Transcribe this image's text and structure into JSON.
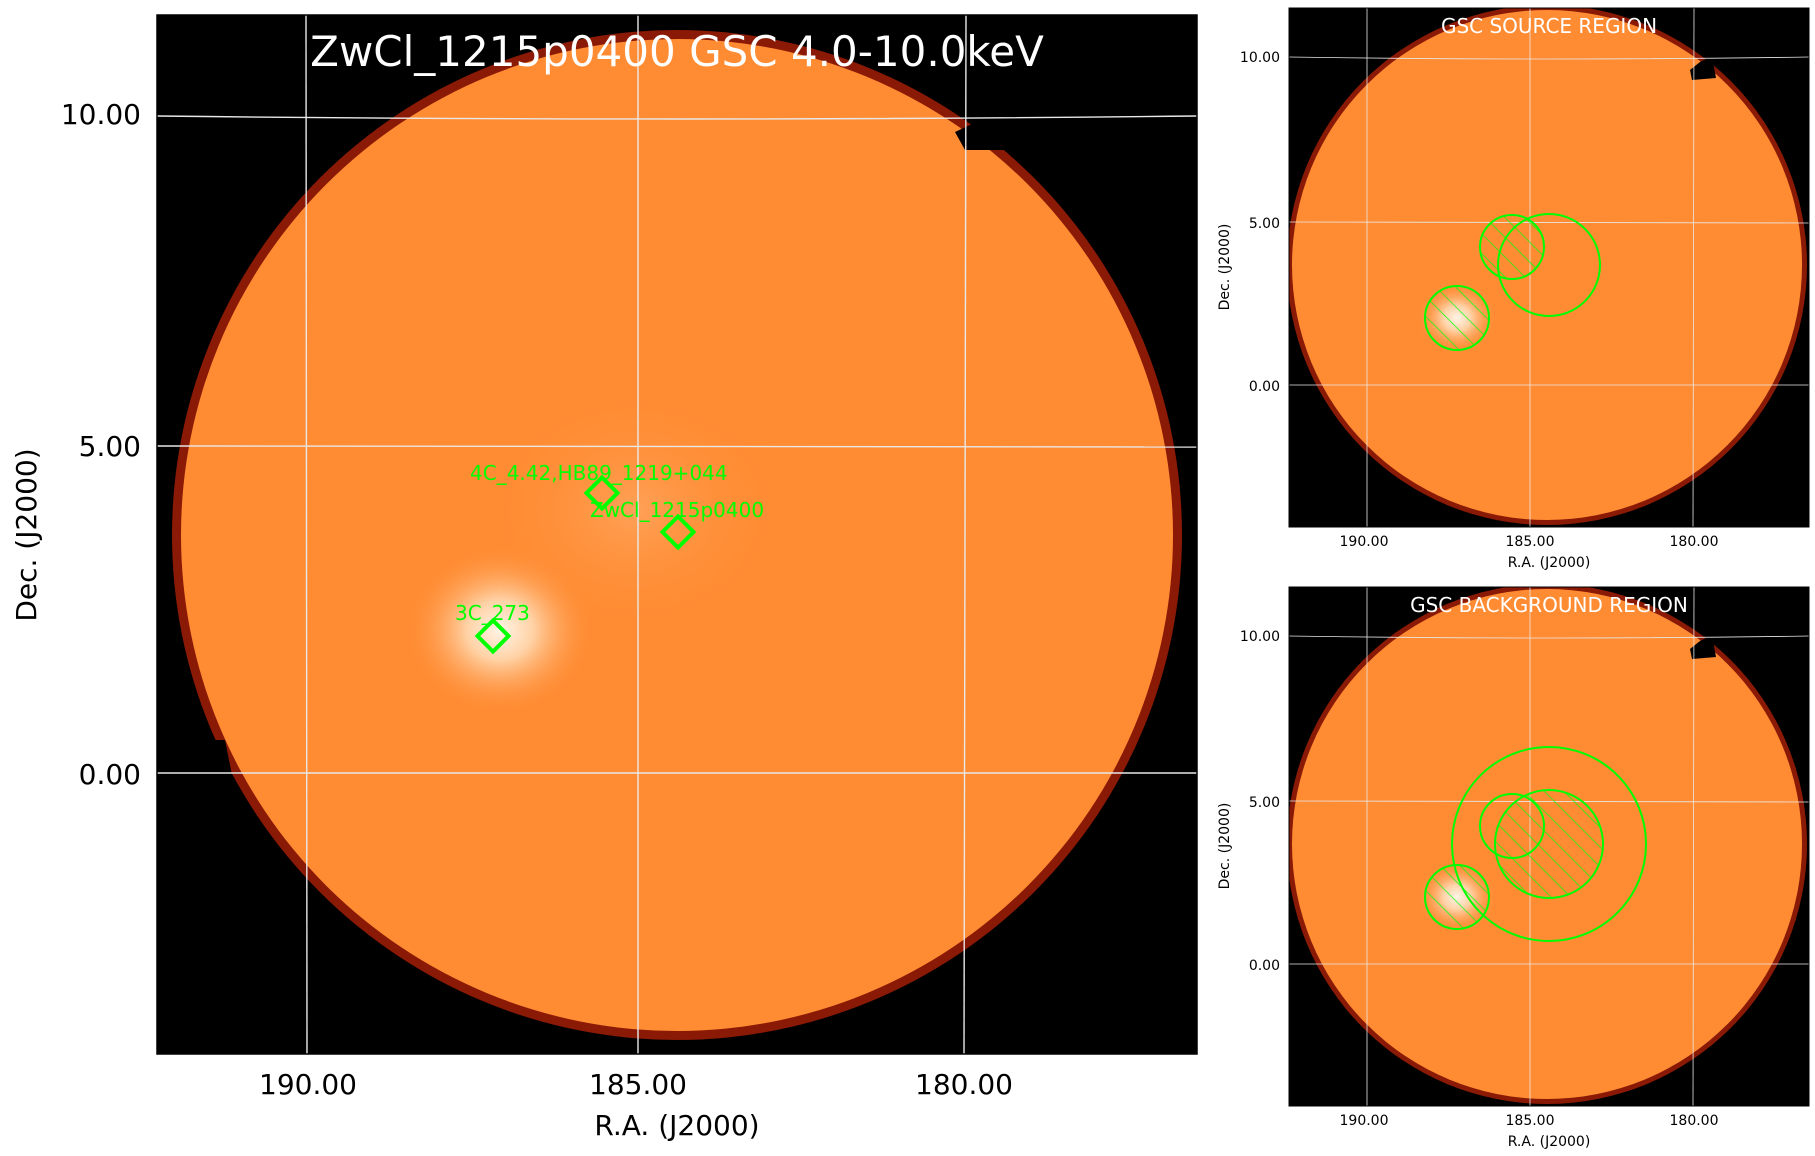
{
  "main_panel": {
    "title": "ZwCl_1215p0400 GSC 4.0-10.0keV",
    "xlabel": "R.A. (J2000)",
    "ylabel": "Dec. (J2000)",
    "x_ticks": [
      "190.00",
      "185.00",
      "180.00"
    ],
    "y_ticks": [
      "10.00",
      "5.00",
      "0.00"
    ],
    "sources": [
      {
        "name": "4C_4.42,HB89_1219+044"
      },
      {
        "name": "ZwCl_1215p0400"
      },
      {
        "name": "3C_273"
      }
    ]
  },
  "source_panel": {
    "title": "GSC SOURCE REGION",
    "xlabel": "R.A. (J2000)",
    "ylabel": "Dec. (J2000)",
    "x_ticks": [
      "190.00",
      "185.00",
      "180.00"
    ],
    "y_ticks": [
      "10.00",
      "5.00",
      "0.00"
    ]
  },
  "background_panel": {
    "title": "GSC BACKGROUND REGION",
    "xlabel": "R.A. (J2000)",
    "ylabel": "Dec. (J2000)",
    "x_ticks": [
      "190.00",
      "185.00",
      "180.00"
    ],
    "y_ticks": [
      "10.00",
      "5.00",
      "0.00"
    ]
  },
  "colors": {
    "map_fill": "#ff8c33",
    "region": "#00ff00",
    "grid": "#e8e8e8",
    "bright_spot": "#fff2e0"
  }
}
